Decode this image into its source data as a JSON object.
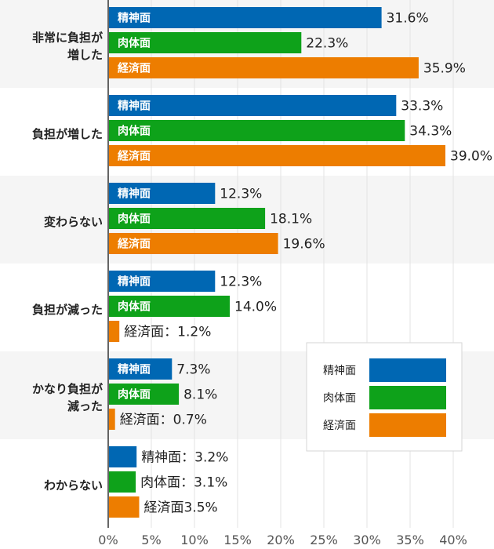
{
  "chart_data": {
    "type": "bar",
    "orientation": "horizontal",
    "categories": [
      [
        "非常に負担が",
        "増した"
      ],
      [
        "負担が増した"
      ],
      [
        "変わらない"
      ],
      [
        "負担が減った"
      ],
      [
        "かなり負担が",
        "減った"
      ],
      [
        "わからない"
      ]
    ],
    "series": [
      {
        "name": "精神面",
        "color": "#0067b3",
        "values": [
          31.6,
          33.3,
          12.3,
          12.3,
          7.3,
          3.2
        ]
      },
      {
        "name": "肉体面",
        "color": "#0ea21a",
        "values": [
          22.3,
          34.3,
          18.1,
          14.0,
          8.1,
          3.1
        ]
      },
      {
        "name": "経済面",
        "color": "#ed7d00",
        "values": [
          35.9,
          39.0,
          19.6,
          1.2,
          0.7,
          3.5
        ]
      }
    ],
    "bar_labels": [
      [
        {
          "inside": "精神面",
          "outside": "31.6%"
        },
        {
          "inside": "肉体面",
          "outside": "22.3%"
        },
        {
          "inside": "経済面",
          "outside": "35.9%"
        }
      ],
      [
        {
          "inside": "精神面",
          "outside": "33.3%"
        },
        {
          "inside": "肉体面",
          "outside": "34.3%"
        },
        {
          "inside": "経済面",
          "outside": "39.0%"
        }
      ],
      [
        {
          "inside": "精神面",
          "outside": "12.3%"
        },
        {
          "inside": "肉体面",
          "outside": "18.1%"
        },
        {
          "inside": "経済面",
          "outside": "19.6%"
        }
      ],
      [
        {
          "inside": "精神面",
          "outside": "12.3%"
        },
        {
          "inside": "肉体面",
          "outside": "14.0%"
        },
        {
          "inside": "",
          "outside": "経済面：1.2%"
        }
      ],
      [
        {
          "inside": "精神面",
          "outside": "7.3%"
        },
        {
          "inside": "肉体面",
          "outside": "8.1%"
        },
        {
          "inside": "",
          "outside": "経済面：0.7%"
        }
      ],
      [
        {
          "inside": "",
          "outside": "精神面：3.2%"
        },
        {
          "inside": "",
          "outside": "肉体面：3.1%"
        },
        {
          "inside": "",
          "outside": "経済面3.5%"
        }
      ]
    ],
    "x_ticks": [
      "0%",
      "5%",
      "10%",
      "15%",
      "20%",
      "25%",
      "30%",
      "35%",
      "40%"
    ],
    "xlim": [
      0,
      40
    ],
    "title": "",
    "xlabel": "",
    "ylabel": "",
    "grid": true,
    "legend": {
      "position": "lower-right",
      "entries": [
        "精神面",
        "肉体面",
        "経済面"
      ]
    }
  }
}
